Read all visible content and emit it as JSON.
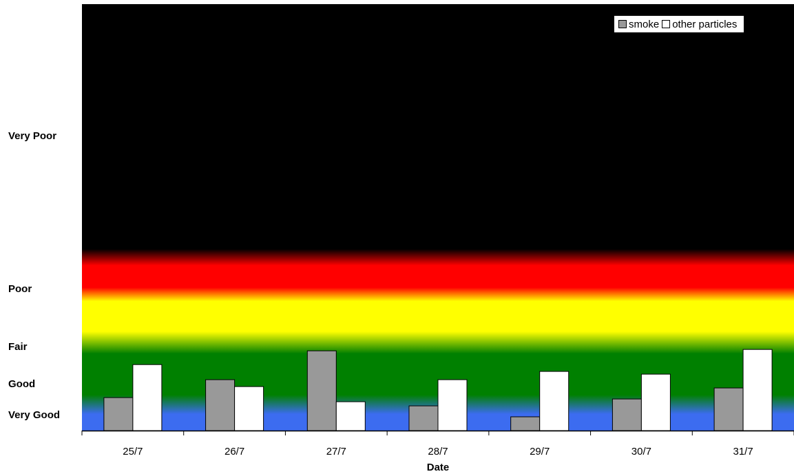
{
  "chart_data": {
    "type": "bar",
    "title": "",
    "xlabel": "Date",
    "ylabel": "",
    "categories": [
      "25/7",
      "26/7",
      "27/7",
      "28/7",
      "29/7",
      "30/7",
      "31/7"
    ],
    "series": [
      {
        "name": "smoke",
        "color": "#999999",
        "values": [
          0.24,
          0.37,
          0.58,
          0.18,
          0.1,
          0.23,
          0.31
        ]
      },
      {
        "name": "other particles",
        "color": "#ffffff",
        "values": [
          0.48,
          0.32,
          0.21,
          0.37,
          0.43,
          0.41,
          0.59
        ]
      }
    ],
    "ylim": [
      0,
      3.1
    ],
    "bands": [
      {
        "label": "Very Good",
        "color": "#3c6cf0"
      },
      {
        "label": "Good",
        "color": "#008000"
      },
      {
        "label": "Fair",
        "color": "#ffff00"
      },
      {
        "label": "Poor",
        "color": "#ff0000"
      },
      {
        "label": "Very Poor",
        "color": "#000000"
      }
    ],
    "grid": false,
    "legend_position": "top-right"
  }
}
